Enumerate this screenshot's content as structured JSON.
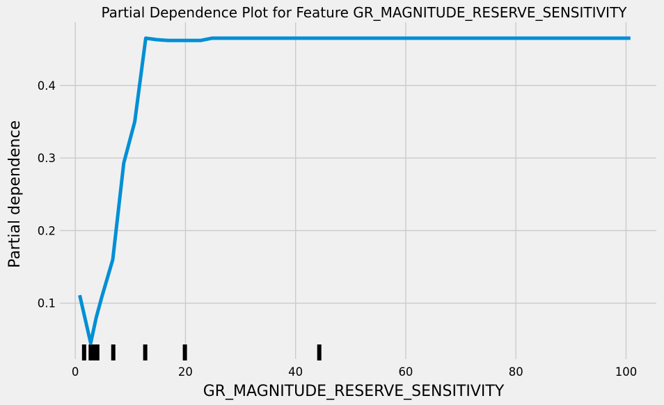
{
  "chart_data": {
    "type": "line",
    "title": "Partial Dependence Plot for Feature GR_MAGNITUDE_RESERVE_SENSITIVITY",
    "xlabel": "GR_MAGNITUDE_RESERVE_SENSITIVITY",
    "ylabel": "Partial dependence",
    "xlim": [
      -2.8,
      105.5
    ],
    "ylim": [
      0.023,
      0.487
    ],
    "xticks": [
      0,
      20,
      40,
      60,
      80,
      100
    ],
    "yticks": [
      0.1,
      0.2,
      0.3,
      0.4
    ],
    "xtick_labels": [
      "0",
      "20",
      "40",
      "60",
      "80",
      "100"
    ],
    "ytick_labels": [
      "0.1",
      "0.2",
      "0.3",
      "0.4"
    ],
    "grid": true,
    "line_color": "#008fd5",
    "rug_color": "#000000",
    "series": [
      {
        "x": [
          0.8,
          2.8,
          3.8,
          4.8,
          6.8,
          8.8,
          10.8,
          12.8,
          14.8,
          16.8,
          18.8,
          20.8,
          22.8,
          24.8,
          26.8,
          30,
          40,
          50,
          60,
          70,
          80,
          90,
          100.8
        ],
        "y": [
          0.111,
          0.045,
          0.08,
          0.108,
          0.16,
          0.293,
          0.35,
          0.465,
          0.463,
          0.462,
          0.462,
          0.462,
          0.462,
          0.465,
          0.465,
          0.465,
          0.465,
          0.465,
          0.465,
          0.465,
          0.465,
          0.465,
          0.465
        ]
      }
    ],
    "rug_x": [
      1.6,
      2.8,
      3.4,
      4.0,
      6.9,
      12.7,
      19.9,
      44.3
    ]
  }
}
